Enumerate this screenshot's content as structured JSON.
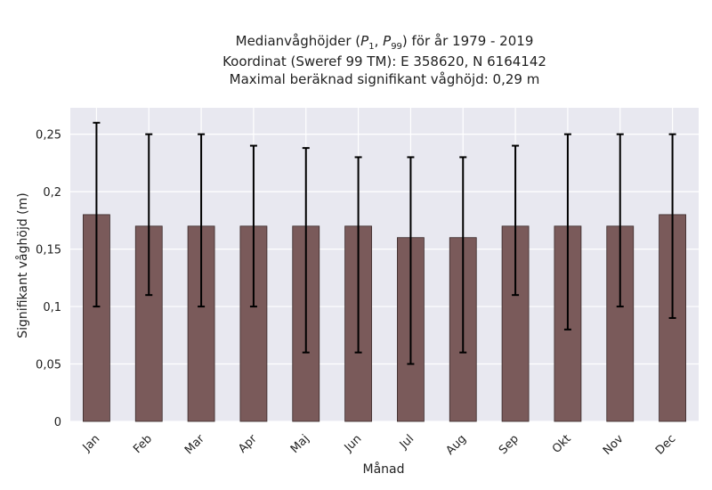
{
  "chart_data": {
    "type": "bar",
    "title": {
      "prefix": "Medianvåghöjder (",
      "p1_main": "P",
      "p1_sub": "1",
      "sep": ", ",
      "p99_main": "P",
      "p99_sub": "99",
      "suffix": ") för år 1979 - 2019",
      "line2": "Koordinat (Sweref 99 TM): E 358620, N 6164142",
      "line3": "Maximal beräknad signifikant våghöjd: 0,29 m"
    },
    "xlabel": "Månad",
    "ylabel": "Signifikant våghöjd (m)",
    "categories": [
      "Jan",
      "Feb",
      "Mar",
      "Apr",
      "Maj",
      "Jun",
      "Jul",
      "Aug",
      "Sep",
      "Okt",
      "Nov",
      "Dec"
    ],
    "values": [
      0.18,
      0.17,
      0.17,
      0.17,
      0.17,
      0.17,
      0.16,
      0.16,
      0.17,
      0.17,
      0.17,
      0.18
    ],
    "err_low": [
      0.1,
      0.11,
      0.1,
      0.1,
      0.06,
      0.06,
      0.05,
      0.06,
      0.11,
      0.08,
      0.1,
      0.09
    ],
    "err_high": [
      0.26,
      0.25,
      0.25,
      0.24,
      0.238,
      0.23,
      0.23,
      0.23,
      0.24,
      0.25,
      0.25,
      0.25
    ],
    "yticks": [
      0,
      0.05,
      0.1,
      0.15,
      0.2,
      0.25
    ],
    "ytick_labels": [
      "0",
      "0,05",
      "0,1",
      "0,15",
      "0,2",
      "0,25"
    ],
    "ylim": [
      0,
      0.273
    ],
    "grid": true,
    "colors": {
      "bar": "#7a5a5a",
      "bar_edge": "#3a2a2a",
      "plot_bg": "#e8e8f0",
      "grid": "#ffffff",
      "errorbar": "#000000"
    }
  }
}
